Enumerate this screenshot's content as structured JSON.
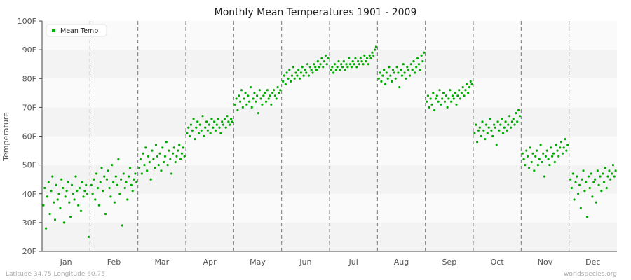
{
  "chart_data": {
    "type": "scatter",
    "title": "Monthly Mean Temperatures 1901 - 2009",
    "xlabel": "",
    "ylabel": "Temperature",
    "ylim": [
      20,
      100
    ],
    "yticks": [
      "20F",
      "30F",
      "40F",
      "50F",
      "60F",
      "70F",
      "80F",
      "90F",
      "100F"
    ],
    "categories": [
      "Jan",
      "Feb",
      "Mar",
      "Apr",
      "May",
      "Jun",
      "Jul",
      "Aug",
      "Sep",
      "Oct",
      "Nov",
      "Dec"
    ],
    "grid": "alternating horizontal bands, dashed month separators",
    "legend": {
      "position": "top-left",
      "entries": [
        "Mean Temp"
      ]
    },
    "series": [
      {
        "name": "Mean Temp",
        "color": "#00aa00",
        "values_by_month": [
          [
            36,
            42,
            28,
            39,
            44,
            33,
            41,
            46,
            37,
            31,
            43,
            38,
            40,
            35,
            45,
            42,
            30,
            39,
            41,
            44,
            37,
            32,
            43,
            40,
            38,
            46,
            41,
            36,
            42,
            34,
            44,
            39,
            41,
            43,
            40,
            25
          ],
          [
            43,
            40,
            45,
            38,
            47,
            42,
            36,
            44,
            49,
            41,
            46,
            33,
            45,
            48,
            42,
            39,
            50,
            44,
            37,
            46,
            43,
            52,
            40,
            45,
            29,
            47,
            42,
            44,
            38,
            46,
            49,
            43,
            41,
            45,
            47,
            44
          ],
          [
            49,
            52,
            47,
            54,
            50,
            56,
            48,
            53,
            51,
            45,
            55,
            52,
            49,
            57,
            53,
            50,
            54,
            48,
            56,
            51,
            53,
            58,
            50,
            55,
            52,
            47,
            54,
            56,
            51,
            53,
            55,
            57,
            52,
            54,
            56,
            53
          ],
          [
            61,
            63,
            60,
            64,
            62,
            66,
            59,
            63,
            65,
            61,
            64,
            62,
            67,
            60,
            63,
            65,
            62,
            64,
            61,
            66,
            63,
            65,
            62,
            64,
            66,
            63,
            61,
            65,
            64,
            66,
            63,
            67,
            65,
            64,
            66,
            65
          ],
          [
            71,
            73,
            69,
            74,
            72,
            76,
            70,
            73,
            75,
            71,
            74,
            72,
            77,
            70,
            73,
            75,
            72,
            74,
            68,
            76,
            73,
            71,
            74,
            75,
            72,
            76,
            73,
            74,
            71,
            75,
            76,
            74,
            73,
            77,
            75,
            76
          ],
          [
            79,
            81,
            78,
            82,
            80,
            83,
            79,
            81,
            84,
            80,
            82,
            81,
            83,
            80,
            82,
            84,
            81,
            83,
            82,
            85,
            81,
            84,
            83,
            82,
            85,
            84,
            83,
            86,
            84,
            85,
            87,
            84,
            86,
            88,
            85,
            87
          ],
          [
            83,
            84,
            82,
            85,
            83,
            84,
            86,
            83,
            85,
            84,
            86,
            83,
            85,
            84,
            87,
            85,
            84,
            86,
            85,
            87,
            84,
            86,
            85,
            87,
            86,
            85,
            88,
            86,
            87,
            85,
            88,
            87,
            89,
            88,
            90,
            91
          ],
          [
            80,
            82,
            79,
            81,
            83,
            78,
            82,
            80,
            84,
            81,
            79,
            83,
            82,
            80,
            84,
            82,
            77,
            83,
            81,
            85,
            82,
            80,
            84,
            83,
            81,
            85,
            83,
            86,
            82,
            84,
            87,
            85,
            83,
            88,
            86,
            89
          ],
          [
            72,
            74,
            70,
            73,
            71,
            75,
            69,
            73,
            74,
            72,
            76,
            71,
            73,
            75,
            72,
            74,
            70,
            73,
            76,
            72,
            74,
            73,
            75,
            71,
            74,
            76,
            73,
            75,
            77,
            74,
            76,
            78,
            75,
            77,
            79,
            78
          ],
          [
            61,
            64,
            58,
            62,
            63,
            60,
            65,
            62,
            59,
            64,
            61,
            63,
            66,
            62,
            60,
            64,
            63,
            57,
            65,
            62,
            64,
            66,
            61,
            63,
            65,
            62,
            64,
            67,
            63,
            65,
            66,
            64,
            68,
            65,
            69,
            67
          ],
          [
            54,
            52,
            50,
            55,
            53,
            49,
            56,
            51,
            54,
            48,
            53,
            55,
            50,
            52,
            57,
            51,
            54,
            46,
            53,
            55,
            52,
            50,
            56,
            53,
            54,
            51,
            57,
            55,
            53,
            56,
            58,
            54,
            56,
            59,
            55,
            57
          ],
          [
            45,
            42,
            47,
            38,
            44,
            46,
            40,
            43,
            35,
            45,
            48,
            41,
            44,
            32,
            46,
            42,
            47,
            39,
            44,
            45,
            37,
            48,
            43,
            46,
            41,
            47,
            44,
            49,
            42,
            46,
            48,
            45,
            47,
            50,
            46,
            48
          ]
        ]
      }
    ]
  },
  "footer": {
    "location": "Latitude 34.75 Longitude 60.75",
    "source": "worldspecies.org"
  }
}
